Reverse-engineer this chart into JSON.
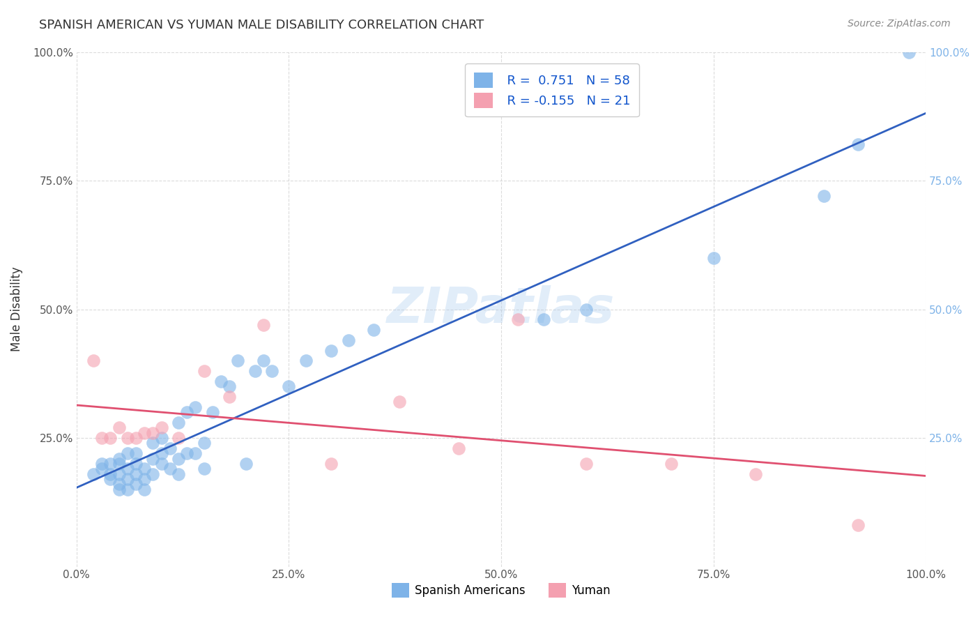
{
  "title": "SPANISH AMERICAN VS YUMAN MALE DISABILITY CORRELATION CHART",
  "source": "Source: ZipAtlas.com",
  "ylabel": "Male Disability",
  "xlabel": "",
  "watermark": "ZIPatlas",
  "r_blue": 0.751,
  "n_blue": 58,
  "r_pink": -0.155,
  "n_pink": 21,
  "xlim": [
    0.0,
    1.0
  ],
  "ylim": [
    0.0,
    1.0
  ],
  "xtick_labels": [
    "0.0%",
    "25.0%",
    "50.0%",
    "75.0%",
    "100.0%"
  ],
  "xtick_vals": [
    0.0,
    0.25,
    0.5,
    0.75,
    1.0
  ],
  "ytick_labels": [
    "25.0%",
    "50.0%",
    "75.0%",
    "100.0%"
  ],
  "ytick_vals": [
    0.25,
    0.5,
    0.75,
    1.0
  ],
  "blue_color": "#7EB3E8",
  "pink_color": "#F4A0B0",
  "trendline_blue": "#3060C0",
  "trendline_pink": "#E05070",
  "background_color": "#FFFFFF",
  "grid_color": "#CCCCCC",
  "blue_scatter_x": [
    0.02,
    0.03,
    0.03,
    0.04,
    0.04,
    0.04,
    0.05,
    0.05,
    0.05,
    0.05,
    0.05,
    0.06,
    0.06,
    0.06,
    0.06,
    0.07,
    0.07,
    0.07,
    0.07,
    0.08,
    0.08,
    0.08,
    0.09,
    0.09,
    0.09,
    0.1,
    0.1,
    0.1,
    0.11,
    0.11,
    0.12,
    0.12,
    0.12,
    0.13,
    0.13,
    0.14,
    0.14,
    0.15,
    0.15,
    0.16,
    0.17,
    0.18,
    0.19,
    0.2,
    0.21,
    0.22,
    0.23,
    0.25,
    0.27,
    0.3,
    0.32,
    0.35,
    0.55,
    0.6,
    0.75,
    0.88,
    0.92,
    0.98
  ],
  "blue_scatter_y": [
    0.18,
    0.19,
    0.2,
    0.17,
    0.18,
    0.2,
    0.15,
    0.16,
    0.18,
    0.2,
    0.21,
    0.15,
    0.17,
    0.19,
    0.22,
    0.16,
    0.18,
    0.2,
    0.22,
    0.15,
    0.17,
    0.19,
    0.18,
    0.21,
    0.24,
    0.2,
    0.22,
    0.25,
    0.19,
    0.23,
    0.18,
    0.21,
    0.28,
    0.22,
    0.3,
    0.22,
    0.31,
    0.19,
    0.24,
    0.3,
    0.36,
    0.35,
    0.4,
    0.2,
    0.38,
    0.4,
    0.38,
    0.35,
    0.4,
    0.42,
    0.44,
    0.46,
    0.48,
    0.5,
    0.6,
    0.72,
    0.82,
    1.0
  ],
  "pink_scatter_x": [
    0.02,
    0.03,
    0.04,
    0.05,
    0.06,
    0.07,
    0.08,
    0.09,
    0.1,
    0.12,
    0.15,
    0.18,
    0.22,
    0.3,
    0.38,
    0.45,
    0.52,
    0.6,
    0.7,
    0.8,
    0.92
  ],
  "pink_scatter_y": [
    0.4,
    0.25,
    0.25,
    0.27,
    0.25,
    0.25,
    0.26,
    0.26,
    0.27,
    0.25,
    0.38,
    0.33,
    0.47,
    0.2,
    0.32,
    0.23,
    0.48,
    0.2,
    0.2,
    0.18,
    0.08
  ]
}
